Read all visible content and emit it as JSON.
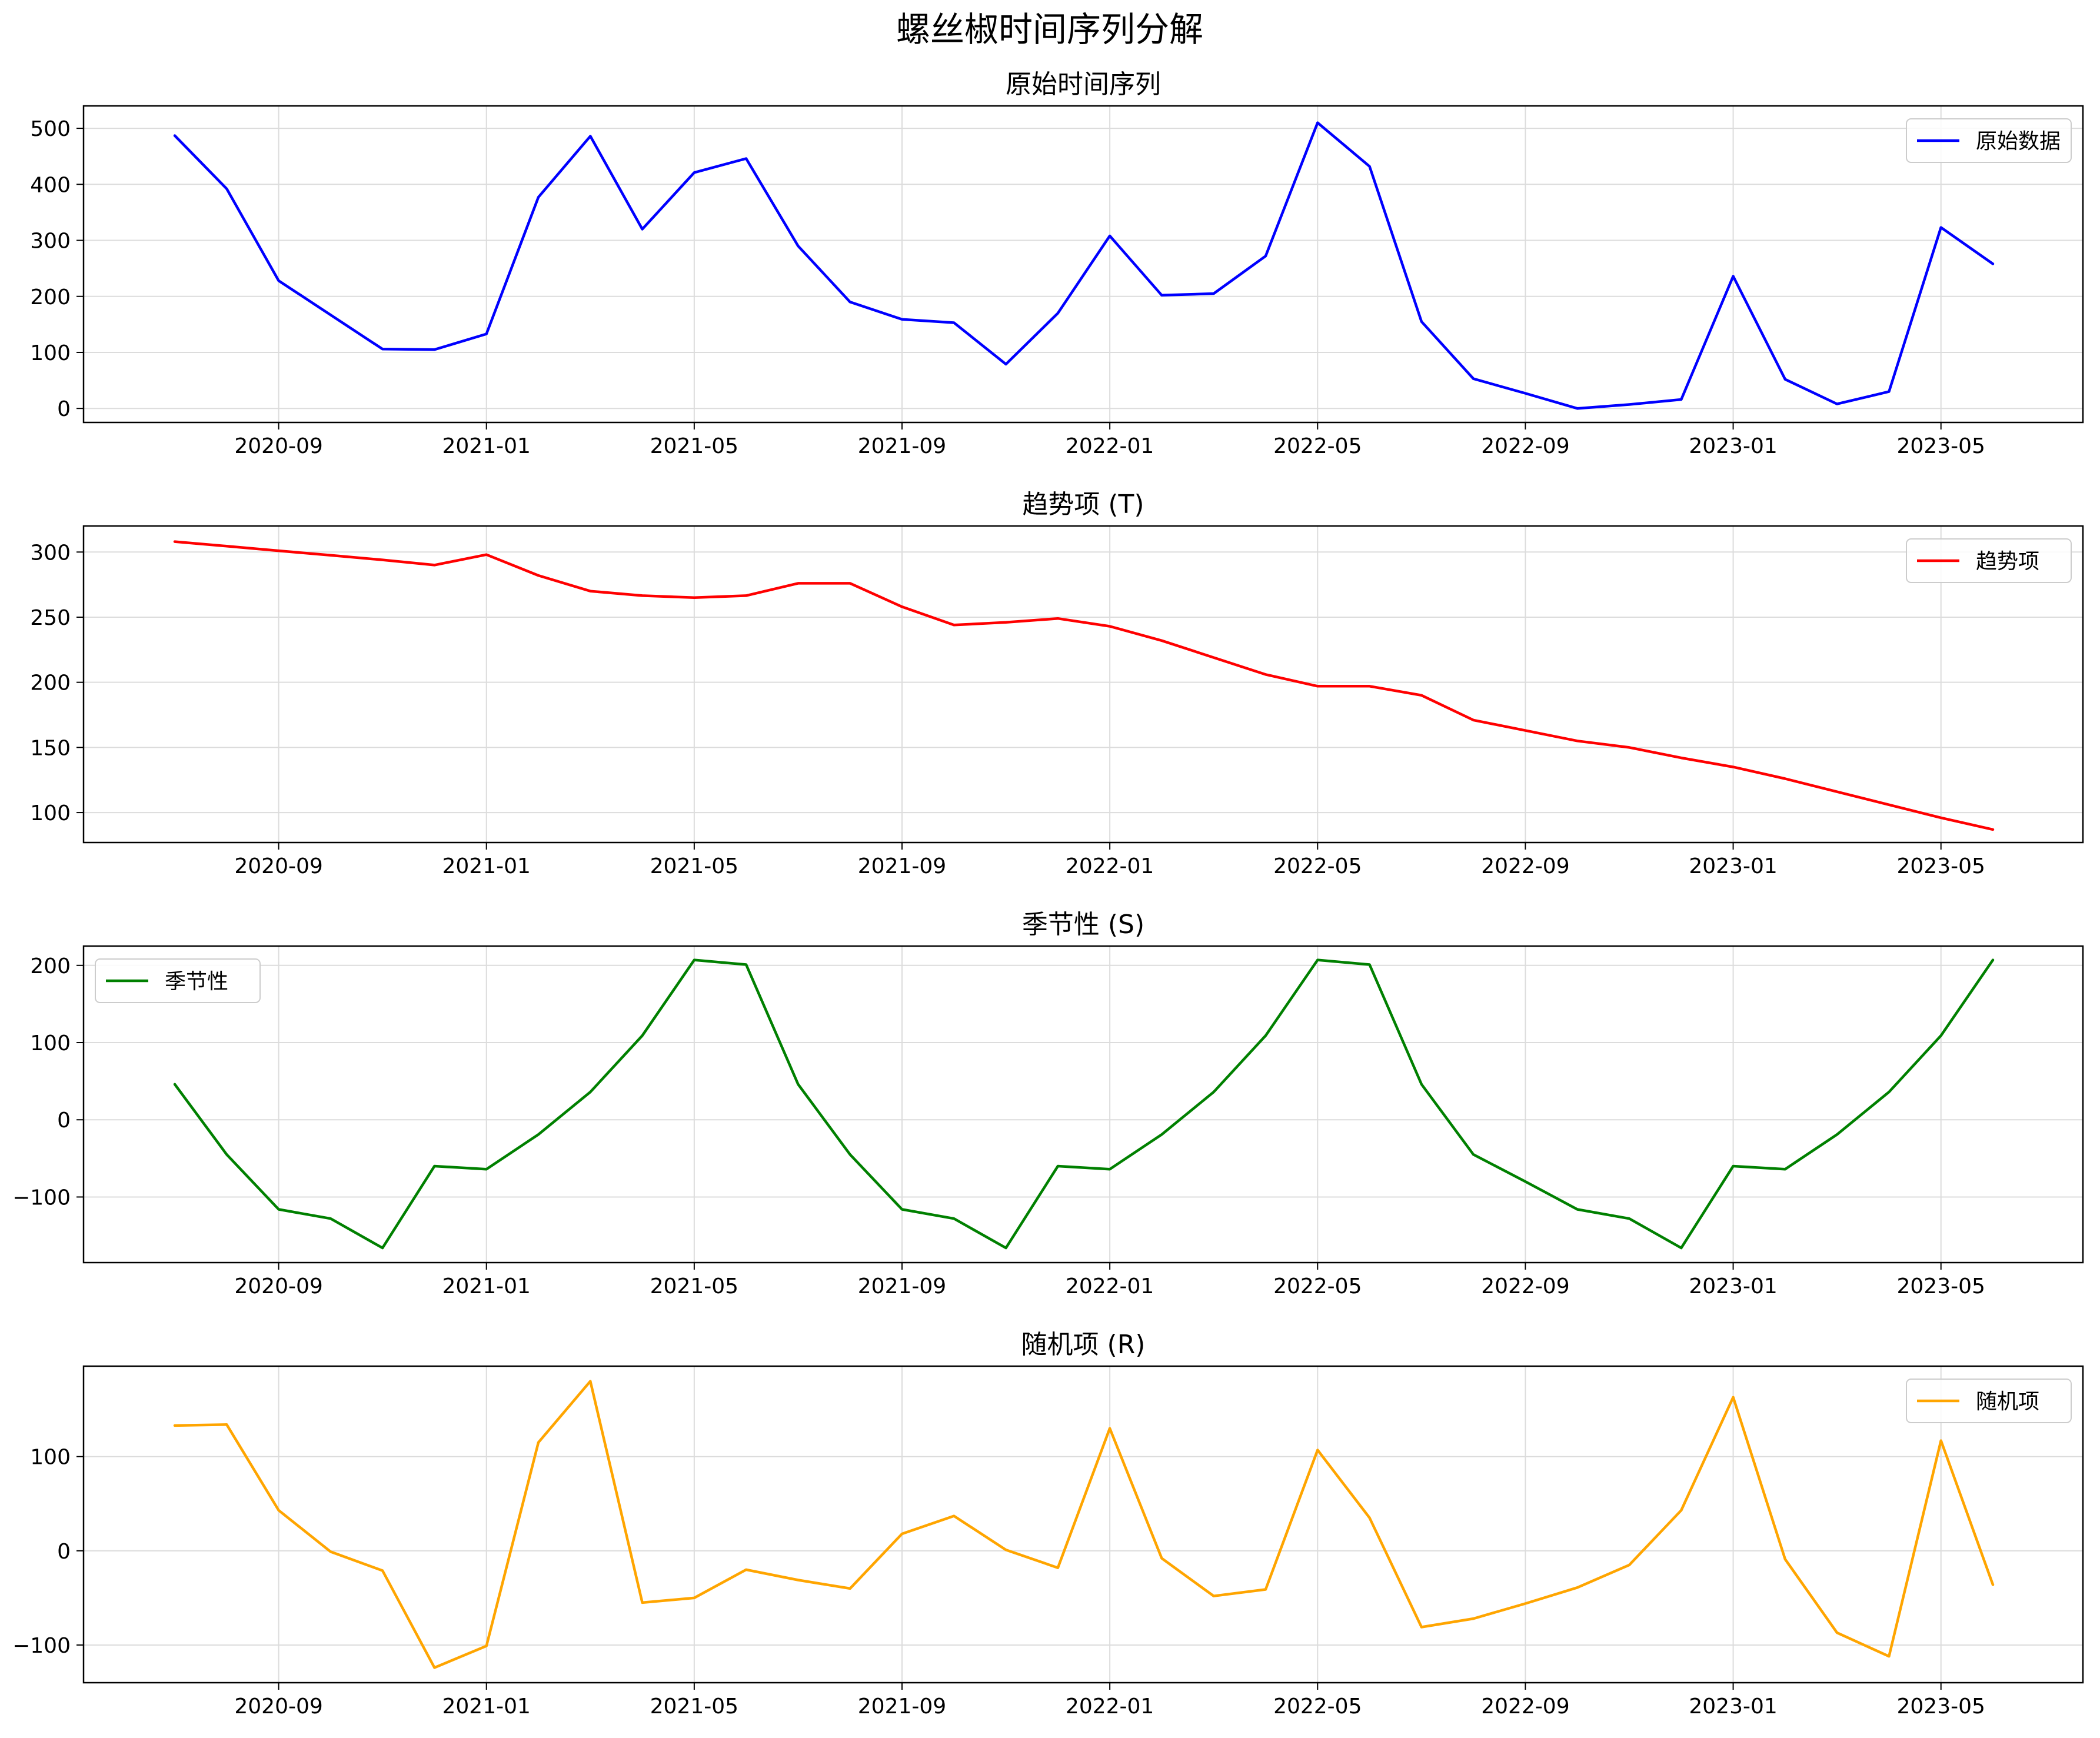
{
  "figure": {
    "title": "螺丝椒时间序列分解"
  },
  "x_tick_labels": [
    "2020-09",
    "2021-01",
    "2021-05",
    "2021-09",
    "2022-01",
    "2022-05",
    "2022-09",
    "2023-01",
    "2023-05"
  ],
  "chart_data": [
    {
      "type": "line",
      "title": "原始时间序列",
      "xlabel": "",
      "ylabel": "",
      "legend_position": "top-right",
      "grid": true,
      "ylim": [
        -25,
        540
      ],
      "yticks": [
        0,
        100,
        200,
        300,
        400,
        500
      ],
      "x": [
        "2020-07",
        "2020-08",
        "2020-09",
        "2020-10",
        "2020-11",
        "2020-12",
        "2021-01",
        "2021-02",
        "2021-03",
        "2021-04",
        "2021-05",
        "2021-06",
        "2021-07",
        "2021-08",
        "2021-09",
        "2021-10",
        "2021-11",
        "2021-12",
        "2022-01",
        "2022-02",
        "2022-03",
        "2022-04",
        "2022-05",
        "2022-06",
        "2022-07",
        "2022-08",
        "2022-09",
        "2022-10",
        "2022-11",
        "2022-12",
        "2023-01",
        "2023-02",
        "2023-03",
        "2023-04",
        "2023-05",
        "2023-06"
      ],
      "series": [
        {
          "name": "原始数据",
          "color": "#0000ff",
          "values": [
            487,
            392,
            228,
            167,
            106,
            105,
            133,
            377,
            486,
            320,
            421,
            446,
            290,
            190,
            159,
            153,
            79,
            170,
            308,
            202,
            205,
            272,
            510,
            432,
            155,
            53,
            27,
            0,
            7,
            16,
            236,
            52,
            8,
            30,
            323,
            258
          ]
        }
      ]
    },
    {
      "type": "line",
      "title": "趋势项 (T)",
      "xlabel": "",
      "ylabel": "",
      "legend_position": "top-right",
      "grid": true,
      "ylim": [
        77,
        320
      ],
      "yticks": [
        100,
        150,
        200,
        250,
        300
      ],
      "x": [
        "2020-07",
        "2020-08",
        "2020-09",
        "2020-10",
        "2020-11",
        "2020-12",
        "2021-01",
        "2021-02",
        "2021-03",
        "2021-04",
        "2021-05",
        "2021-06",
        "2021-07",
        "2021-08",
        "2021-09",
        "2021-10",
        "2021-11",
        "2021-12",
        "2022-01",
        "2022-02",
        "2022-03",
        "2022-04",
        "2022-05",
        "2022-06",
        "2022-07",
        "2022-08",
        "2022-09",
        "2022-10",
        "2022-11",
        "2022-12",
        "2023-01",
        "2023-02",
        "2023-03",
        "2023-04",
        "2023-05",
        "2023-06"
      ],
      "series": [
        {
          "name": "趋势项",
          "color": "#ff0000",
          "values": [
            308,
            304.5,
            301,
            297.5,
            294,
            290,
            298,
            282,
            270,
            266.5,
            265,
            266.5,
            276,
            276,
            258,
            244,
            246,
            249,
            243,
            232,
            219,
            206,
            197,
            197,
            190,
            171,
            163,
            155,
            150,
            142,
            135,
            126,
            116,
            106,
            96,
            87
          ]
        }
      ]
    },
    {
      "type": "line",
      "title": "季节性 (S)",
      "xlabel": "",
      "ylabel": "",
      "legend_position": "top-left",
      "grid": true,
      "ylim": [
        -185,
        225
      ],
      "yticks": [
        -100,
        0,
        100,
        200
      ],
      "x": [
        "2020-07",
        "2020-08",
        "2020-09",
        "2020-10",
        "2020-11",
        "2020-12",
        "2021-01",
        "2021-02",
        "2021-03",
        "2021-04",
        "2021-05",
        "2021-06",
        "2021-07",
        "2021-08",
        "2021-09",
        "2021-10",
        "2021-11",
        "2021-12",
        "2022-01",
        "2022-02",
        "2022-03",
        "2022-04",
        "2022-05",
        "2022-06",
        "2022-07",
        "2022-08",
        "2022-09",
        "2022-10",
        "2022-11",
        "2022-12",
        "2023-01",
        "2023-02",
        "2023-03",
        "2023-04",
        "2023-05",
        "2023-06"
      ],
      "series": [
        {
          "name": "季节性",
          "color": "#008000",
          "values": [
            46,
            -45,
            -116,
            -128,
            -166,
            -60,
            -64,
            -19,
            36,
            109,
            207,
            201,
            46,
            -45,
            -116,
            -128,
            -166,
            -60,
            -64,
            -19,
            36,
            109,
            207,
            201,
            46,
            -45,
            -80,
            -116,
            -128,
            -166,
            -60,
            -64,
            -19,
            36,
            109,
            207
          ]
        }
      ]
    },
    {
      "type": "line",
      "title": "随机项 (R)",
      "xlabel": "",
      "ylabel": "",
      "legend_position": "top-right",
      "grid": true,
      "ylim": [
        -140,
        196
      ],
      "yticks": [
        -100,
        0,
        100
      ],
      "x": [
        "2020-07",
        "2020-08",
        "2020-09",
        "2020-10",
        "2020-11",
        "2020-12",
        "2021-01",
        "2021-02",
        "2021-03",
        "2021-04",
        "2021-05",
        "2021-06",
        "2021-07",
        "2021-08",
        "2021-09",
        "2021-10",
        "2021-11",
        "2021-12",
        "2022-01",
        "2022-02",
        "2022-03",
        "2022-04",
        "2022-05",
        "2022-06",
        "2022-07",
        "2022-08",
        "2022-09",
        "2022-10",
        "2022-11",
        "2022-12",
        "2023-01",
        "2023-02",
        "2023-03",
        "2023-04",
        "2023-05",
        "2023-06"
      ],
      "series": [
        {
          "name": "随机项",
          "color": "#ffa500",
          "values": [
            133,
            134,
            43,
            -1,
            -21,
            -124,
            -101,
            115,
            180,
            -55,
            -50,
            -20,
            -31,
            -40,
            18,
            37,
            1,
            -18,
            130,
            -8,
            -48,
            -41,
            107,
            35,
            -81,
            -72,
            -56,
            -39,
            -15,
            43,
            163,
            -9,
            -87,
            -112,
            117,
            -36
          ]
        }
      ]
    }
  ]
}
